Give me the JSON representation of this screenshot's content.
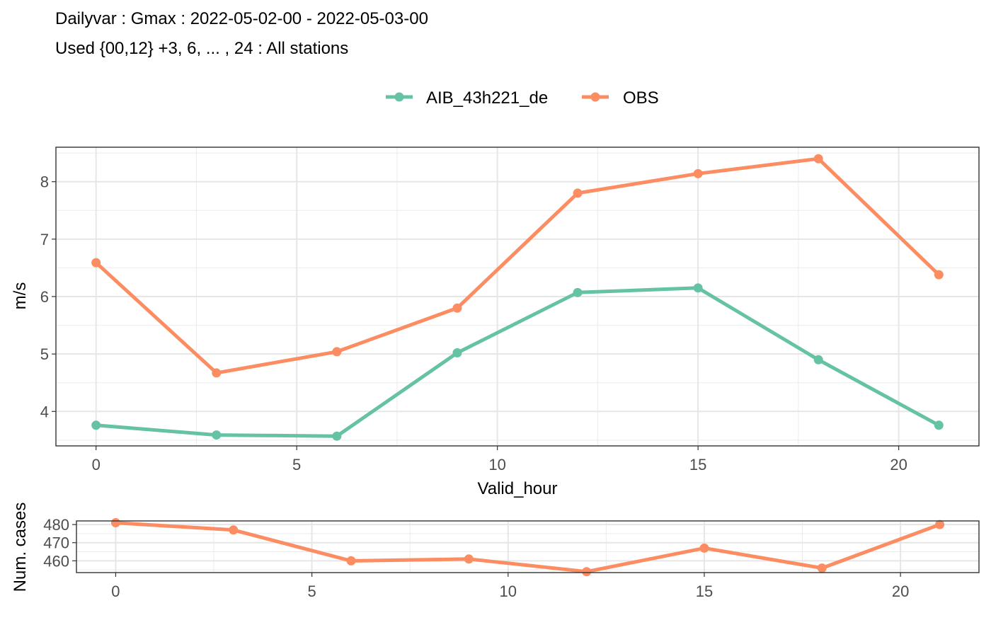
{
  "title": "Dailyvar : Gmax : 2022-05-02-00 - 2022-05-03-00",
  "subtitle": "Used {00,12} +3, 6, ... , 24 : All stations",
  "colors": {
    "AIB_43h221_de": "#66c2a5",
    "OBS": "#fc8d62"
  },
  "chart_data": [
    {
      "type": "line",
      "xlabel": "Valid_hour",
      "ylabel": "m/s",
      "x": [
        0,
        3,
        6,
        9,
        12,
        15,
        18,
        21
      ],
      "xlim": [
        -1,
        22
      ],
      "ylim": [
        3.4,
        8.6
      ],
      "xticks": [
        0,
        5,
        10,
        15,
        20
      ],
      "yticks": [
        4,
        5,
        6,
        7,
        8
      ],
      "grid": true,
      "legend": "top",
      "series": [
        {
          "name": "AIB_43h221_de",
          "values": [
            3.76,
            3.59,
            3.57,
            5.02,
            6.07,
            6.15,
            4.9,
            3.76
          ]
        },
        {
          "name": "OBS",
          "values": [
            6.59,
            4.67,
            5.04,
            5.8,
            7.8,
            8.14,
            8.4,
            6.38
          ]
        }
      ]
    },
    {
      "type": "line",
      "xlabel": "",
      "ylabel": "Num. cases",
      "x": [
        0,
        3,
        6,
        9,
        12,
        15,
        18,
        21
      ],
      "xlim": [
        -1,
        22
      ],
      "ylim": [
        453.5,
        482
      ],
      "xticks": [
        0,
        5,
        10,
        15,
        20
      ],
      "yticks": [
        460,
        470,
        480
      ],
      "grid": true,
      "series": [
        {
          "name": "",
          "values": [
            481,
            477,
            460,
            461,
            454,
            467,
            456,
            480
          ]
        }
      ]
    }
  ]
}
